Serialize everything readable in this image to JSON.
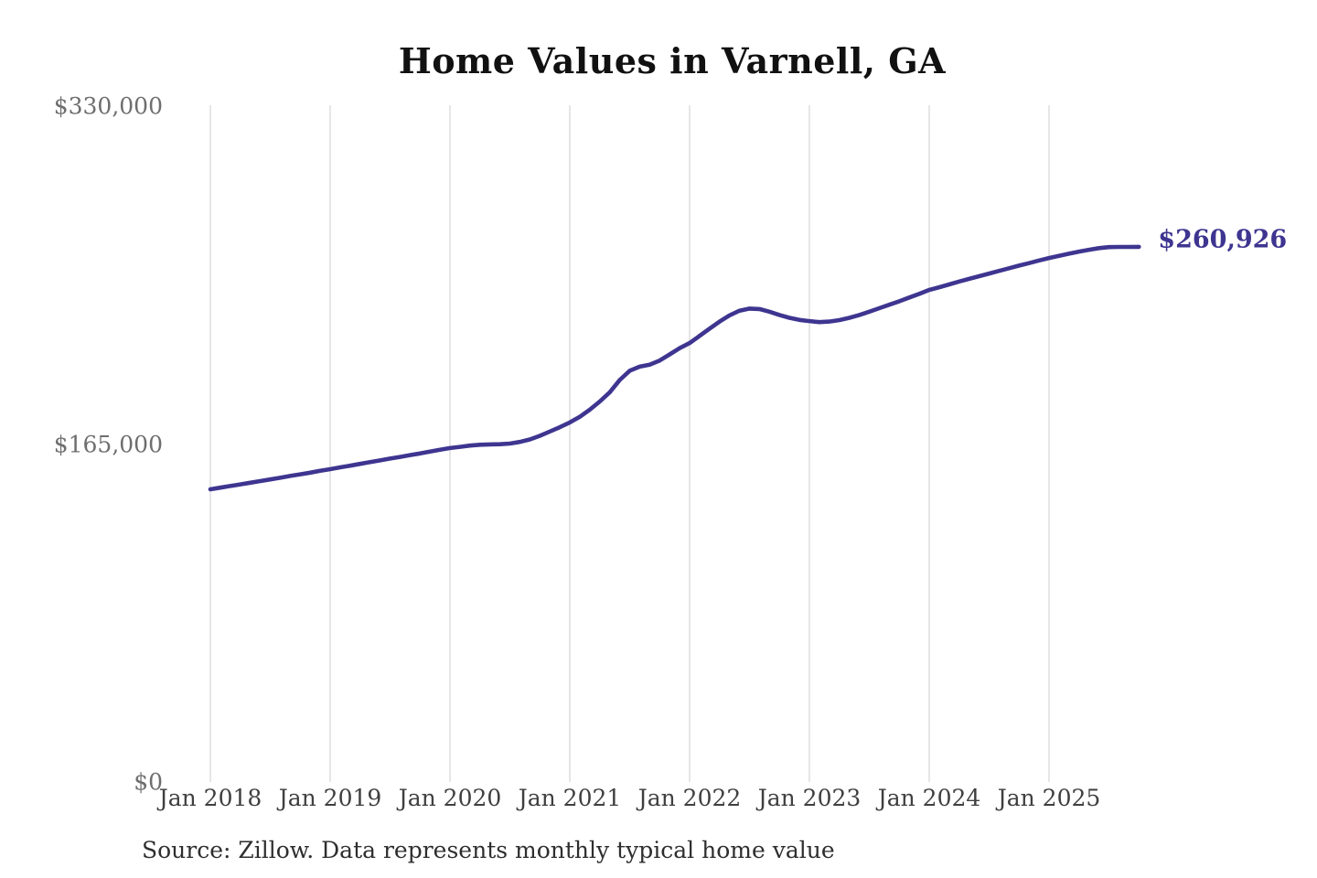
{
  "page": {
    "background": "#ffffff"
  },
  "header": {
    "title": "Home Values in Varnell, GA"
  },
  "annotation": {
    "latest_value_label": "$260,926"
  },
  "footer": {
    "source_note": "Source: Zillow. Data represents monthly typical home value"
  },
  "colors": {
    "line": "#3e3590",
    "grid": "#cccccc",
    "title_text": "#111111",
    "y_tick_text": "#6e6e6e",
    "x_tick_text": "#3f3f3f",
    "source_text": "#2e2e2e"
  },
  "chart_data": {
    "type": "line",
    "title": "Home Values in Varnell, GA",
    "x_start": "2018-01",
    "x_end": "2025-10",
    "x_frequency": "monthly",
    "x_tick_labels": [
      "Jan 2018",
      "Jan 2019",
      "Jan 2020",
      "Jan 2021",
      "Jan 2022",
      "Jan 2023",
      "Jan 2024",
      "Jan 2025"
    ],
    "y_tick_labels": [
      "$0",
      "$165,000",
      "$330,000"
    ],
    "y_tick_values": [
      0,
      165000,
      330000
    ],
    "ylim": [
      0,
      330000
    ],
    "grid": "vertical year gridlines only",
    "legend": "none",
    "latest_value": 260926,
    "latest_label": "$260,926",
    "series": [
      {
        "name": "Monthly typical home value",
        "values": [
          142700,
          143500,
          144300,
          145100,
          145900,
          146700,
          147500,
          148300,
          149200,
          150000,
          150800,
          151700,
          152500,
          153400,
          154200,
          155100,
          156000,
          156800,
          157700,
          158500,
          159400,
          160200,
          161100,
          162000,
          162800,
          163400,
          164000,
          164400,
          164600,
          164700,
          165000,
          165800,
          167000,
          168800,
          170900,
          173000,
          175300,
          178000,
          181500,
          185500,
          190000,
          196000,
          200500,
          202500,
          203500,
          205500,
          208500,
          211500,
          214000,
          217500,
          221000,
          224500,
          227500,
          229800,
          230800,
          230600,
          229300,
          227700,
          226300,
          225300,
          224700,
          224200,
          224500,
          225200,
          226300,
          227700,
          229300,
          231000,
          232700,
          234400,
          236200,
          238000,
          239900,
          241200,
          242600,
          244000,
          245300,
          246600,
          247900,
          249200,
          250500,
          251800,
          253000,
          254300,
          255500,
          256500,
          257600,
          258600,
          259500,
          260300,
          260800,
          260900,
          260900,
          260926
        ]
      }
    ]
  }
}
